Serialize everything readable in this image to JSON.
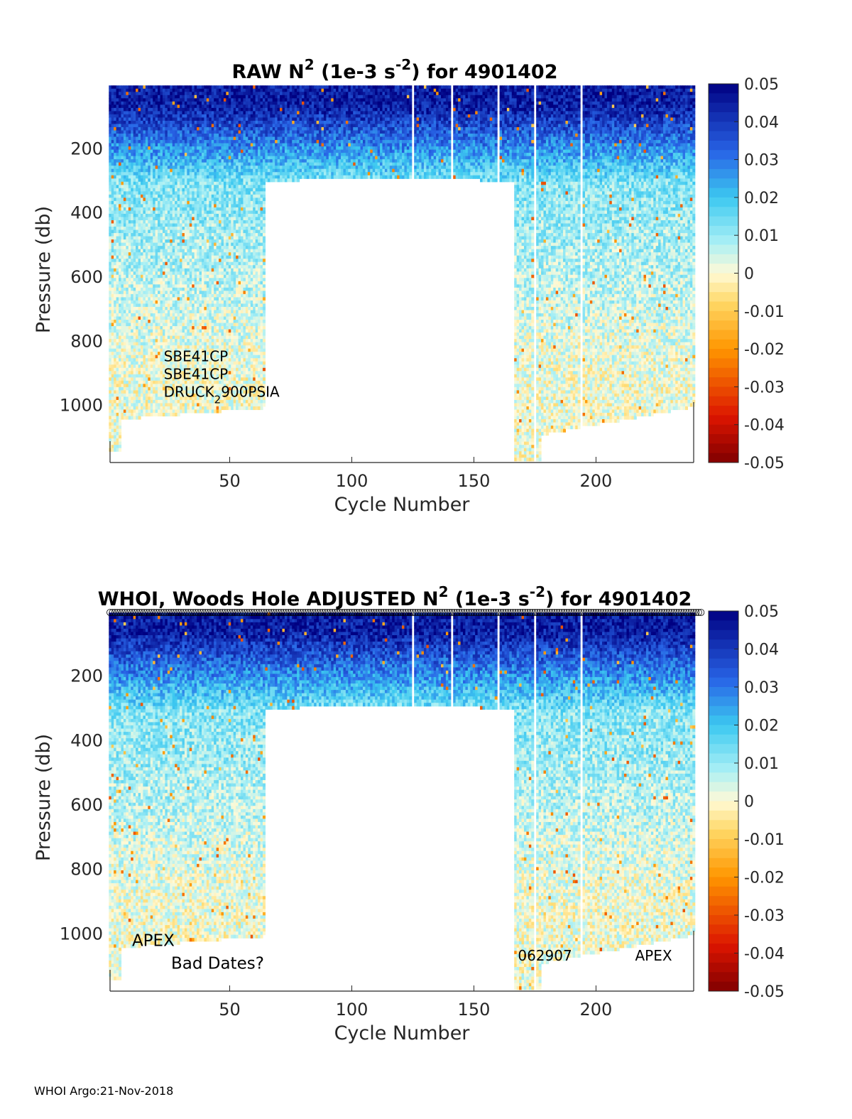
{
  "footer": "WHOI Argo:21-Nov-2018",
  "chart_data": [
    {
      "type": "heatmap",
      "title_main": "RAW N",
      "title_sup": "2",
      "title_mid": " (1e-3 s",
      "title_sup2": "-2",
      "title_end": ") for 4901402",
      "xlabel": "Cycle Number",
      "ylabel": "Pressure (db)",
      "xlim": [
        1,
        240
      ],
      "ylim": [
        1180,
        0
      ],
      "xticks": [
        50,
        100,
        150,
        200
      ],
      "yticks": [
        200,
        400,
        600,
        800,
        1000
      ],
      "colorbar": {
        "min": -0.05,
        "max": 0.05,
        "ticks": [
          "0.05",
          "0.04",
          "0.03",
          "0.02",
          "0.01",
          "0",
          "-0.01",
          "-0.02",
          "-0.03",
          "-0.04",
          "-0.05"
        ]
      },
      "annotations": [
        {
          "text": "SBE41CP",
          "x": 23,
          "y": 865
        },
        {
          "text": "SBE41CP",
          "x": 23,
          "y": 920
        },
        {
          "text": "DRUCK",
          "sub": "2",
          "after": "900PSIA",
          "x": 23,
          "y": 975
        }
      ],
      "markers": false
    },
    {
      "type": "heatmap",
      "title_main": "WHOI, Woods Hole  ADJUSTED N",
      "title_sup": "2",
      "title_mid": " (1e-3 s",
      "title_sup2": "-2",
      "title_end": ") for 4901402",
      "xlabel": "Cycle Number",
      "ylabel": "Pressure (db)",
      "xlim": [
        1,
        240
      ],
      "ylim": [
        1180,
        0
      ],
      "xticks": [
        50,
        100,
        150,
        200
      ],
      "yticks": [
        200,
        400,
        600,
        800,
        1000
      ],
      "colorbar": {
        "min": -0.05,
        "max": 0.05,
        "ticks": [
          "0.05",
          "0.04",
          "0.03",
          "0.02",
          "0.01",
          "0",
          "-0.01",
          "-0.02",
          "-0.03",
          "-0.04",
          "-0.05"
        ]
      },
      "annotations": [
        {
          "text": "APEX",
          "x": 10,
          "y": 1040,
          "large": true
        },
        {
          "text": "Bad Dates?",
          "x": 26,
          "y": 1110,
          "large": true
        },
        {
          "text": "062907",
          "x": 168,
          "y": 1085
        },
        {
          "text": "APEX",
          "x": 216,
          "y": 1085
        }
      ],
      "markers": true
    }
  ]
}
